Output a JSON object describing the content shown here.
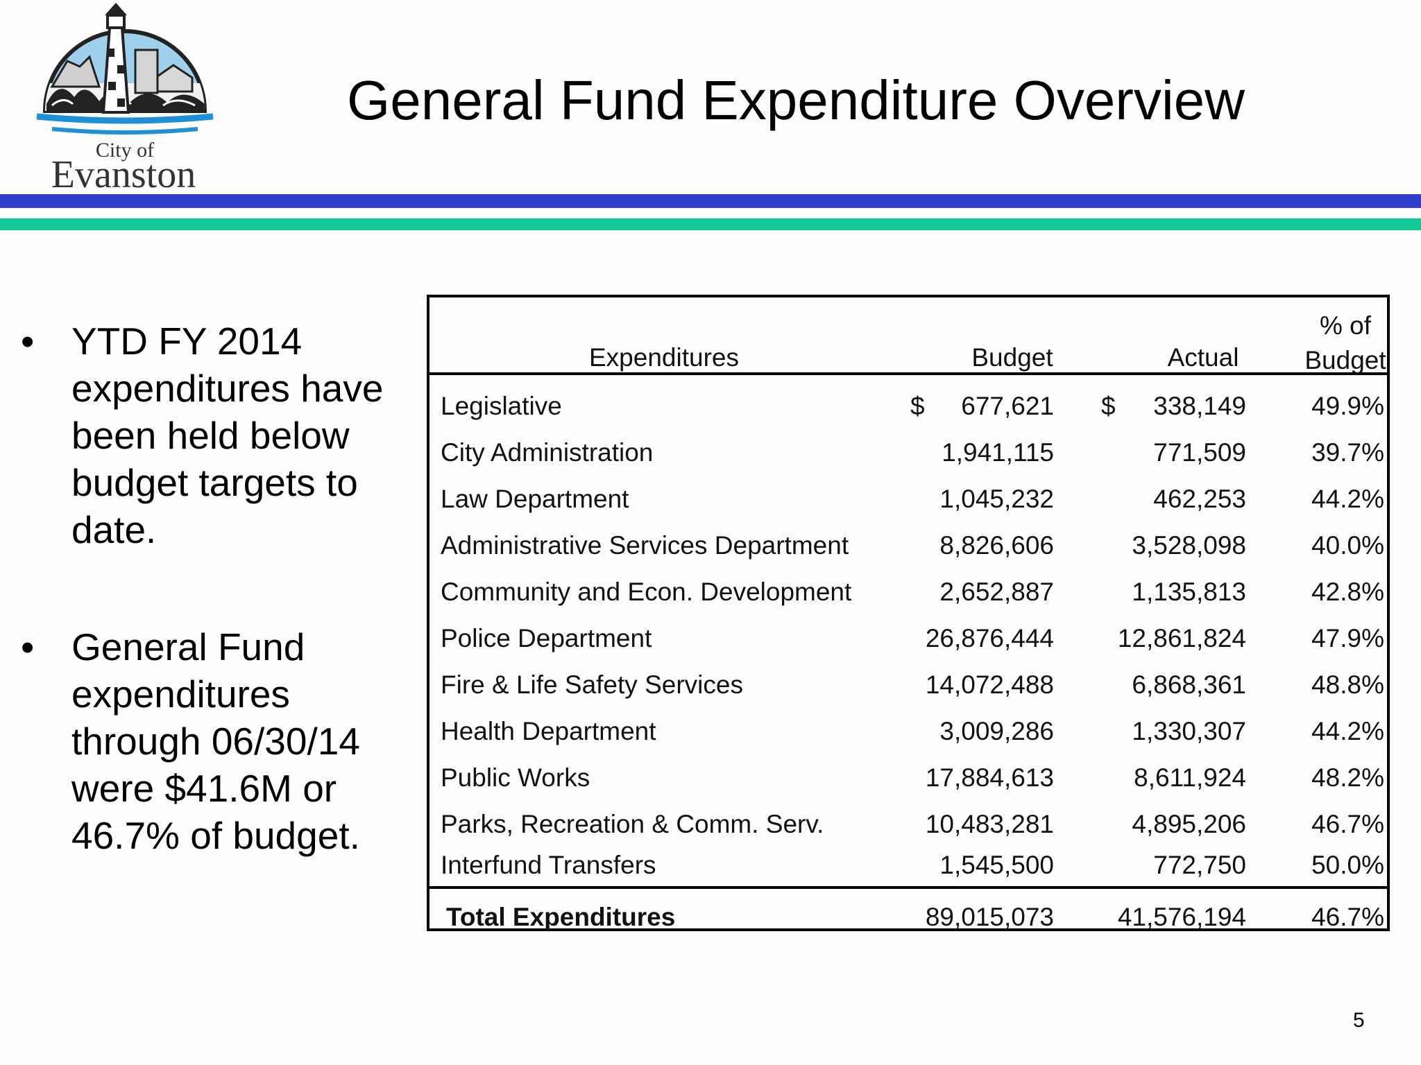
{
  "slide": {
    "title": "General Fund Expenditure Overview",
    "page_number": "5"
  },
  "logo": {
    "line1": "City of",
    "line2": "Evanston"
  },
  "bullets": [
    {
      "text": "YTD FY 2014 expenditures have been held below budget targets to date."
    },
    {
      "text": "General Fund expenditures through 06/30/14 were $41.6M or 46.7% of budget."
    }
  ],
  "table": {
    "headers": {
      "expenditures": "Expenditures",
      "budget": "Budget",
      "actual": "Actual",
      "pct_line1": "% of",
      "pct_line2": "Budget"
    },
    "currency_symbol": "$",
    "rows": [
      {
        "name": "Legislative",
        "budget": "677,621",
        "actual": "338,149",
        "pct": "49.9%"
      },
      {
        "name": "City Administration",
        "budget": "1,941,115",
        "actual": "771,509",
        "pct": "39.7%"
      },
      {
        "name": "Law Department",
        "budget": "1,045,232",
        "actual": "462,253",
        "pct": "44.2%"
      },
      {
        "name": "Administrative Services Department",
        "budget": "8,826,606",
        "actual": "3,528,098",
        "pct": "40.0%"
      },
      {
        "name": "Community and Econ. Development",
        "budget": "2,652,887",
        "actual": "1,135,813",
        "pct": "42.8%"
      },
      {
        "name": "Police Department",
        "budget": "26,876,444",
        "actual": "12,861,824",
        "pct": "47.9%"
      },
      {
        "name": "Fire & Life Safety Services",
        "budget": "14,072,488",
        "actual": "6,868,361",
        "pct": "48.8%"
      },
      {
        "name": "Health Department",
        "budget": "3,009,286",
        "actual": "1,330,307",
        "pct": "44.2%"
      },
      {
        "name": "Public Works",
        "budget": "17,884,613",
        "actual": "8,611,924",
        "pct": "48.2%"
      },
      {
        "name": "Parks, Recreation & Comm. Serv.",
        "budget": "10,483,281",
        "actual": "4,895,206",
        "pct": "46.7%"
      },
      {
        "name": "Interfund Transfers",
        "budget": "1,545,500",
        "actual": "772,750",
        "pct": "50.0%"
      }
    ],
    "total": {
      "name": "Total Expenditures",
      "budget": "89,015,073",
      "actual": "41,576,194",
      "pct": "46.7%"
    }
  }
}
